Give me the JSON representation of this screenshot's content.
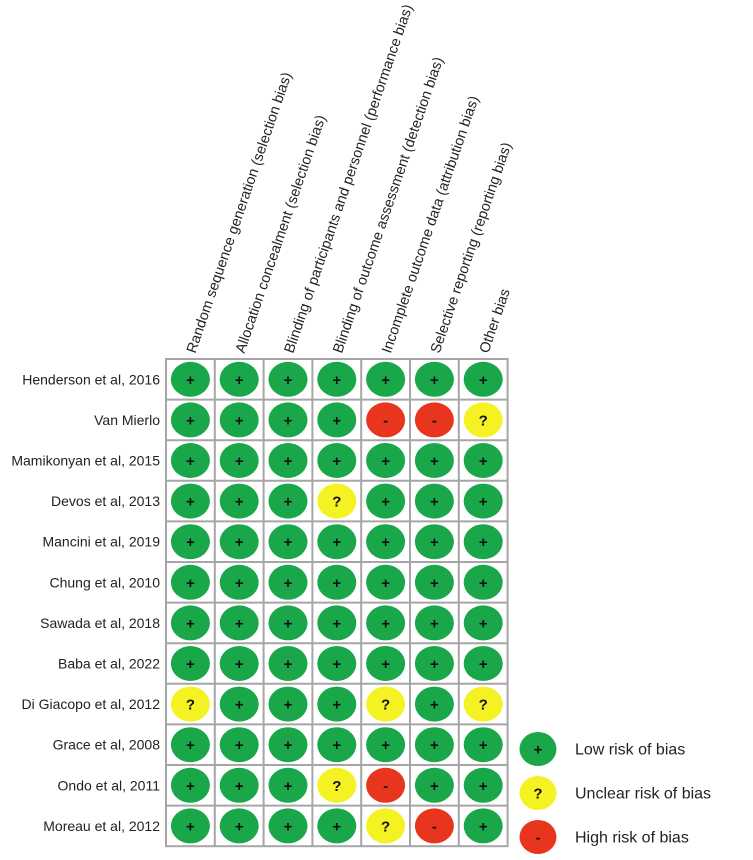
{
  "chart_data": {
    "type": "table",
    "domains": [
      "Random sequence generation (selection bias)",
      "Allocation concealment (selection bias)",
      "Blinding of participants and personnel (performance bias)",
      "Blinding of outcome assessment (detection bias)",
      "Incomplete outcome data (attribution bias)",
      "Selective reporting (reporting bias)",
      "Other bias"
    ],
    "studies": [
      "Henderson et al, 2016",
      "Van Mierlo",
      "Mamikonyan et al, 2015",
      "Devos et al, 2013",
      "Mancini et al, 2019",
      "Chung et al, 2010",
      "Sawada et al, 2018",
      "Baba et al, 2022",
      "Di Giacopo et al, 2012",
      "Grace et al, 2008",
      "Ondo et al, 2011",
      "Moreau et al, 2012"
    ],
    "judgements": [
      [
        "low",
        "low",
        "low",
        "low",
        "low",
        "low",
        "low"
      ],
      [
        "low",
        "low",
        "low",
        "low",
        "high",
        "high",
        "unclear"
      ],
      [
        "low",
        "low",
        "low",
        "low",
        "low",
        "low",
        "low"
      ],
      [
        "low",
        "low",
        "low",
        "unclear",
        "low",
        "low",
        "low"
      ],
      [
        "low",
        "low",
        "low",
        "low",
        "low",
        "low",
        "low"
      ],
      [
        "low",
        "low",
        "low",
        "low",
        "low",
        "low",
        "low"
      ],
      [
        "low",
        "low",
        "low",
        "low",
        "low",
        "low",
        "low"
      ],
      [
        "low",
        "low",
        "low",
        "low",
        "low",
        "low",
        "low"
      ],
      [
        "unclear",
        "low",
        "low",
        "low",
        "unclear",
        "low",
        "unclear"
      ],
      [
        "low",
        "low",
        "low",
        "low",
        "low",
        "low",
        "low"
      ],
      [
        "low",
        "low",
        "low",
        "unclear",
        "high",
        "low",
        "low"
      ],
      [
        "low",
        "low",
        "low",
        "low",
        "unclear",
        "high",
        "low"
      ]
    ],
    "symbols": {
      "low": "+",
      "unclear": "?",
      "high": "-"
    },
    "colors": {
      "low": "#1aa74a",
      "unclear": "#f5f224",
      "high": "#e8351e",
      "grid": "#a6a6a6"
    },
    "legend": [
      {
        "key": "low",
        "label": "Low risk of bias"
      },
      {
        "key": "unclear",
        "label": "Unclear risk of bias"
      },
      {
        "key": "high",
        "label": "High risk of bias"
      }
    ]
  }
}
